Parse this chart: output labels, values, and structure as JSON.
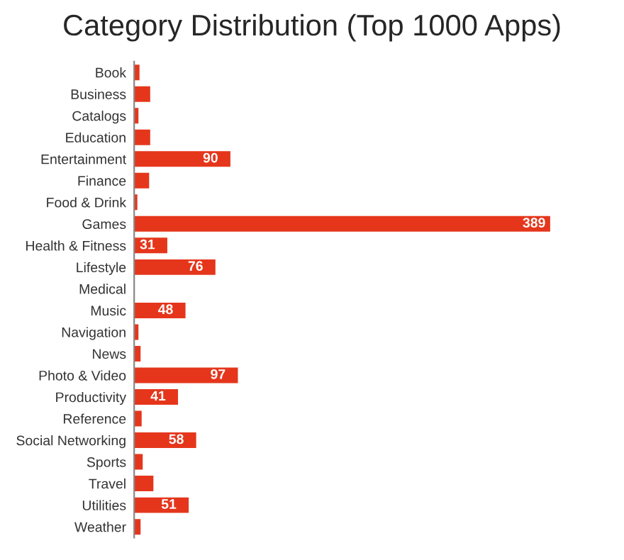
{
  "chart_data": {
    "type": "bar",
    "orientation": "horizontal",
    "title": "Category Distribution (Top 1000 Apps)",
    "categories": [
      "Book",
      "Business",
      "Catalogs",
      "Education",
      "Entertainment",
      "Finance",
      "Food & Drink",
      "Games",
      "Health & Fitness",
      "Lifestyle",
      "Medical",
      "Music",
      "Navigation",
      "News",
      "Photo & Video",
      "Productivity",
      "Reference",
      "Social Networking",
      "Sports",
      "Travel",
      "Utilities",
      "Weather"
    ],
    "values": [
      5,
      15,
      4,
      15,
      90,
      14,
      3,
      389,
      31,
      76,
      0,
      48,
      4,
      6,
      97,
      41,
      7,
      58,
      8,
      18,
      51,
      6
    ],
    "value_labels": [
      null,
      null,
      null,
      null,
      "90",
      null,
      null,
      "389",
      "31",
      "76",
      null,
      "48",
      null,
      null,
      "97",
      "41",
      null,
      "58",
      null,
      null,
      "51",
      null
    ],
    "color": "#e5361c",
    "grid": false,
    "legend": false
  }
}
